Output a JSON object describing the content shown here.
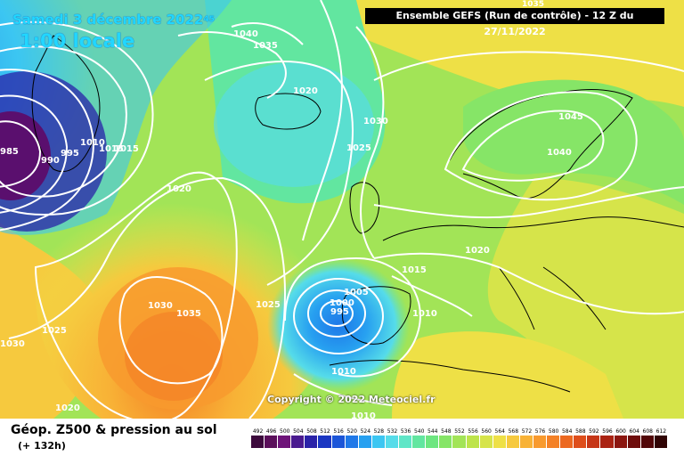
{
  "header": {
    "date_line": "Samedi 3 décembre 2022",
    "date_line_hint": "45",
    "time_line": "1:00 locale",
    "run_info": "Ensemble GEFS  (Run de contrôle)  -  12 Z du 27/11/2022",
    "top_value": "1035"
  },
  "map": {
    "copyright": "Copyright © 2022 Meteociel.fr",
    "isobar_labels": [
      {
        "text": "1040"
      },
      {
        "text": "1035"
      },
      {
        "text": "1020"
      },
      {
        "text": "1030"
      },
      {
        "text": "1025"
      },
      {
        "text": "1045"
      },
      {
        "text": "1040"
      },
      {
        "text": "1020"
      },
      {
        "text": "1015"
      },
      {
        "text": "1005"
      },
      {
        "text": "1000"
      },
      {
        "text": "995"
      },
      {
        "text": "1010"
      },
      {
        "text": "1025"
      },
      {
        "text": "1030"
      },
      {
        "text": "1035"
      },
      {
        "text": "1020"
      },
      {
        "text": "1025"
      },
      {
        "text": "1030"
      },
      {
        "text": "1020"
      },
      {
        "text": "1010"
      },
      {
        "text": "1010"
      },
      {
        "text": "985"
      },
      {
        "text": "990"
      },
      {
        "text": "995"
      },
      {
        "text": "1010"
      },
      {
        "text": "1015"
      },
      {
        "text": "1015"
      }
    ]
  },
  "footer": {
    "title": "Géop. Z500 & pression au sol",
    "subtitle": "(+ 132h)"
  },
  "scale": {
    "labels": [
      "492",
      "496",
      "500",
      "504",
      "508",
      "512",
      "516",
      "520",
      "524",
      "528",
      "532",
      "536",
      "540",
      "544",
      "548",
      "552",
      "556",
      "560",
      "564",
      "568",
      "572",
      "576",
      "580",
      "584",
      "588",
      "592",
      "596",
      "600",
      "604",
      "608",
      "612"
    ],
    "colors": [
      "#3d0a3d",
      "#5a0f5a",
      "#6e1479",
      "#4a1a8f",
      "#2a22a8",
      "#1a36c2",
      "#1b55d8",
      "#1f78e8",
      "#27a0f0",
      "#3cc6f2",
      "#56dce9",
      "#5fe6c7",
      "#62e6a0",
      "#6de680",
      "#86e567",
      "#a2e457",
      "#bde44a",
      "#d6e44a",
      "#eee046",
      "#f6c93e",
      "#f8b236",
      "#f89a2e",
      "#f48126",
      "#ec6820",
      "#de4e1b",
      "#c63617",
      "#aa2313",
      "#8c1610",
      "#6e0d0c",
      "#520708",
      "#300404"
    ]
  }
}
